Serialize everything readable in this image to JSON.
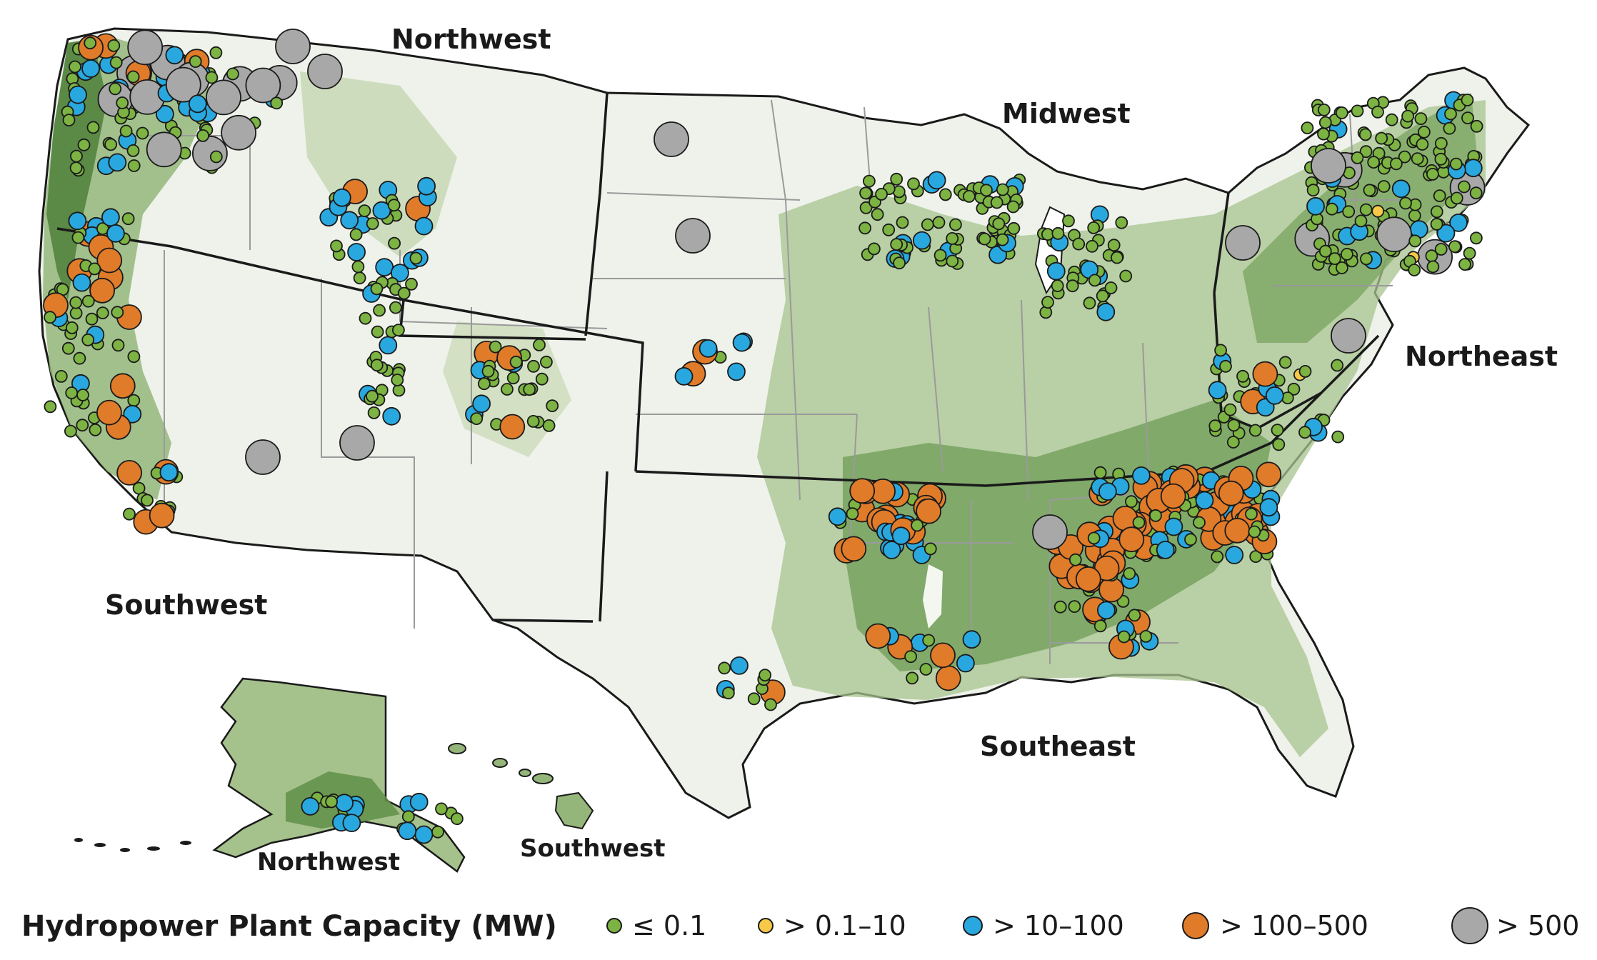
{
  "region_labels": {
    "northwest": "Northwest",
    "midwest": "Midwest",
    "northeast": "Northeast",
    "southwest": "Southwest",
    "southeast": "Southeast",
    "alaska_region": "Northwest",
    "hawaii_region": "Southwest"
  },
  "legend": {
    "title": "Hydropower Plant Capacity (MW)",
    "classes": [
      {
        "label": "≤ 0.1",
        "color": "#7cb342",
        "size": "smallest"
      },
      {
        "label": "> 0.1–10",
        "color": "#f7c948",
        "size": "small"
      },
      {
        "label": "> 10–100",
        "color": "#29a8e0",
        "size": "medium"
      },
      {
        "label": "> 100–500",
        "color": "#e07b2a",
        "size": "large"
      },
      {
        "label": "> 500",
        "color": "#a8a8a8",
        "size": "largest"
      }
    ]
  },
  "colors": {
    "land_base": "#eef2ea",
    "terrain_light": "#c8d8b4",
    "terrain_mid": "#94b67a",
    "terrain_dark": "#5f8f47",
    "region_border": "#1a1a1a",
    "state_border": "#9a9a9a"
  }
}
